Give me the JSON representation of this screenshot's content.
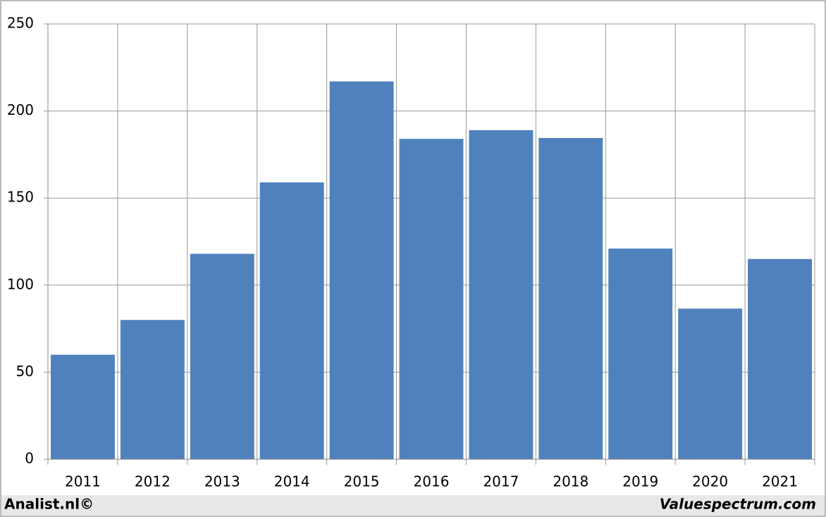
{
  "chart_data": {
    "type": "bar",
    "categories": [
      "2011",
      "2012",
      "2013",
      "2014",
      "2015",
      "2016",
      "2017",
      "2018",
      "2019",
      "2020",
      "2021"
    ],
    "values": [
      60,
      80,
      118,
      159,
      217,
      184,
      189,
      184.5,
      121,
      86.5,
      115
    ],
    "color": "#4f81bd",
    "ylim": [
      0,
      250
    ],
    "yticks": [
      0,
      50,
      100,
      150,
      200,
      250
    ],
    "grid": true,
    "annotations": [
      "Analist.nl©",
      "Valuespectrum.com"
    ]
  }
}
